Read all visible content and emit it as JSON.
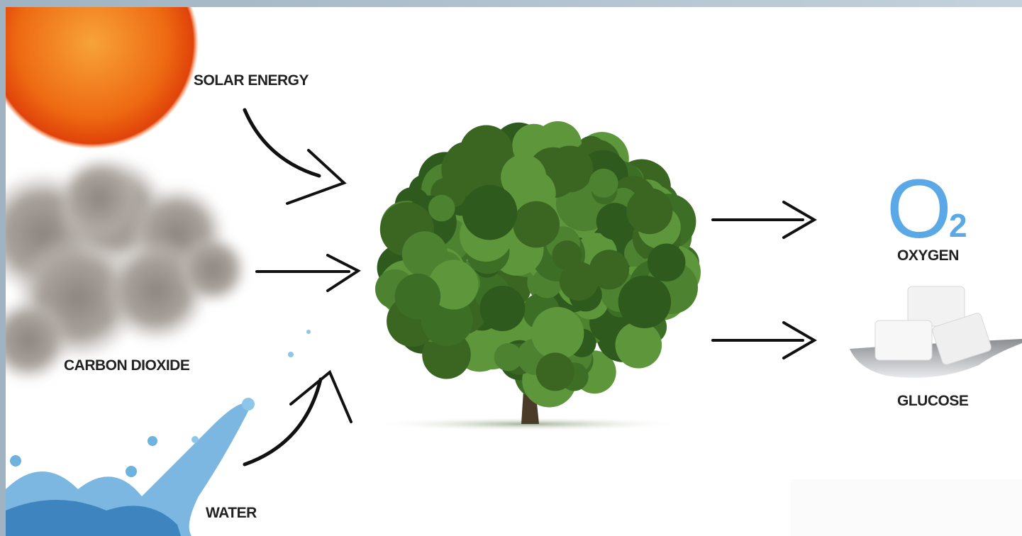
{
  "inputs": [
    {
      "label": "SOLAR ENERGY"
    },
    {
      "label": "CARBON DIOXIDE"
    },
    {
      "label": "WATER"
    }
  ],
  "outputs": [
    {
      "label": "OXYGEN",
      "symbol": "O",
      "subscript": "2"
    },
    {
      "label": "GLUCOSE"
    }
  ]
}
